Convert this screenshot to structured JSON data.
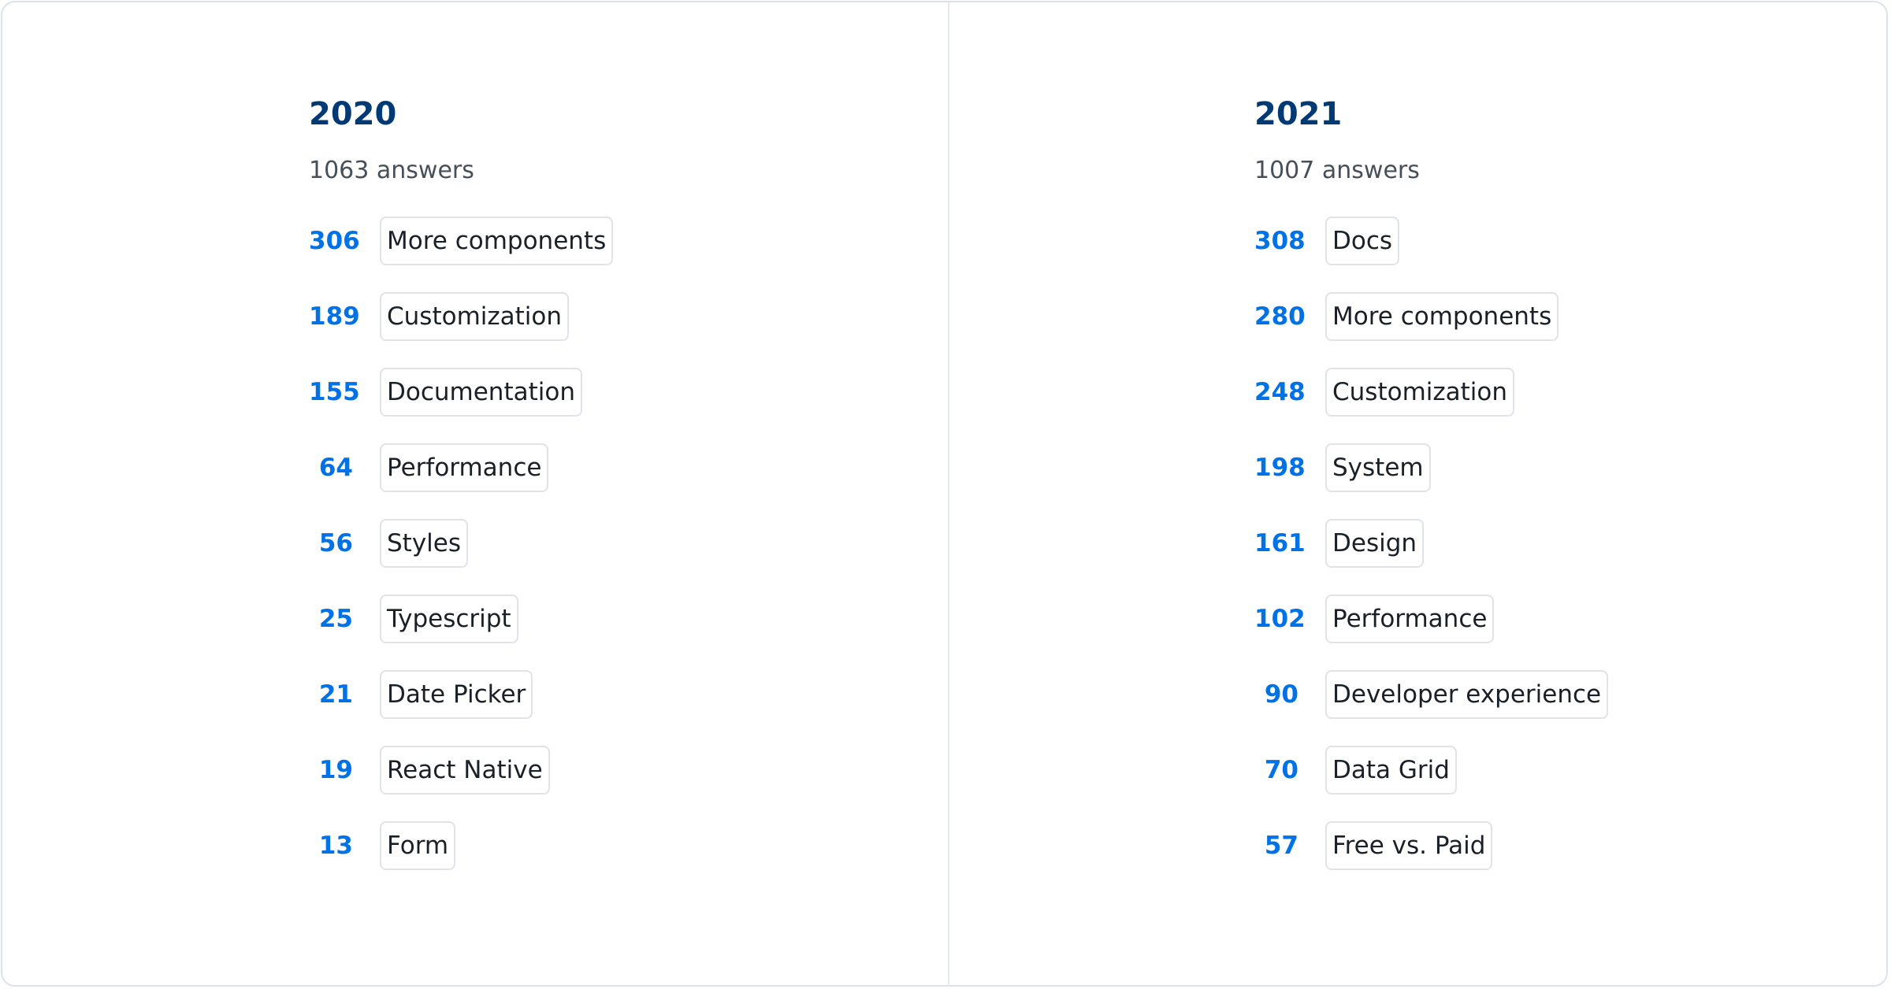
{
  "colors": {
    "heading": "#003A75",
    "count": "#0072E5",
    "subtitle": "#46505A",
    "pill_border": "#E0E3E7"
  },
  "columns": [
    {
      "year": "2020",
      "answers": "1063 answers",
      "items": [
        {
          "count": "306",
          "label": "More components"
        },
        {
          "count": "189",
          "label": "Customization"
        },
        {
          "count": "155",
          "label": "Documentation"
        },
        {
          "count": "64",
          "label": "Performance"
        },
        {
          "count": "56",
          "label": "Styles"
        },
        {
          "count": "25",
          "label": "Typescript"
        },
        {
          "count": "21",
          "label": "Date Picker"
        },
        {
          "count": "19",
          "label": "React Native"
        },
        {
          "count": "13",
          "label": "Form"
        }
      ]
    },
    {
      "year": "2021",
      "answers": "1007 answers",
      "items": [
        {
          "count": "308",
          "label": "Docs"
        },
        {
          "count": "280",
          "label": "More components"
        },
        {
          "count": "248",
          "label": "Customization"
        },
        {
          "count": "198",
          "label": "System"
        },
        {
          "count": "161",
          "label": "Design"
        },
        {
          "count": "102",
          "label": "Performance"
        },
        {
          "count": "90",
          "label": "Developer experience"
        },
        {
          "count": "70",
          "label": "Data Grid"
        },
        {
          "count": "57",
          "label": "Free vs. Paid"
        }
      ]
    }
  ]
}
